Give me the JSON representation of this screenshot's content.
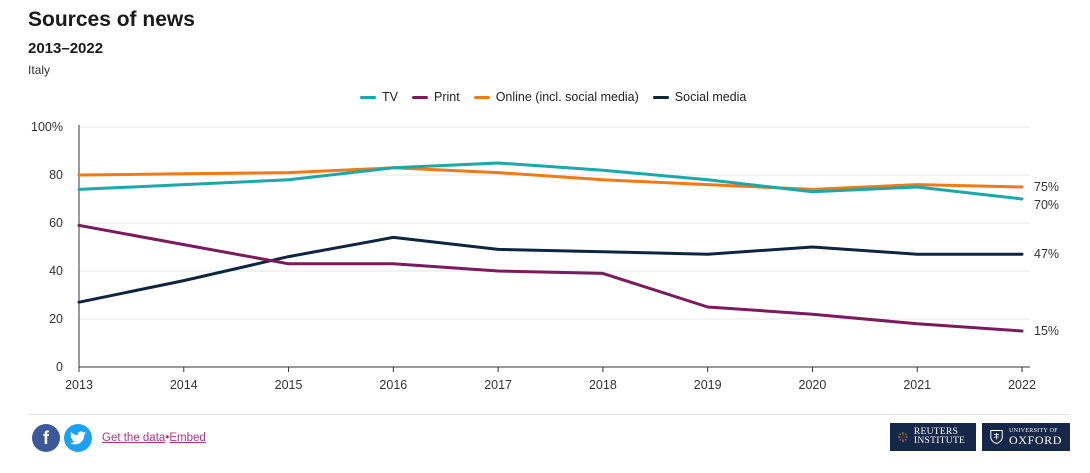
{
  "header": {
    "title": "Sources of news",
    "subtitle": "2013–2022",
    "region": "Italy"
  },
  "chart_data": {
    "type": "line",
    "x": [
      2013,
      2014,
      2015,
      2016,
      2017,
      2018,
      2019,
      2020,
      2021,
      2022
    ],
    "ylim": [
      0,
      100
    ],
    "yticks": [
      0,
      20,
      40,
      60,
      80,
      100
    ],
    "ytick_labels": [
      "0",
      "20",
      "40",
      "60",
      "80",
      "100%"
    ],
    "grid": true,
    "legend_position": "top-center",
    "series": [
      {
        "name": "TV",
        "color": "#1ba8a8",
        "values": [
          74,
          76,
          78,
          83,
          85,
          82,
          78,
          73,
          75,
          70
        ],
        "end_label": "70%"
      },
      {
        "name": "Print",
        "color": "#7b1a5c",
        "values": [
          59,
          51,
          43,
          43,
          40,
          39,
          25,
          22,
          18,
          15
        ],
        "end_label": "15%"
      },
      {
        "name": "Online (incl. social media)",
        "color": "#f07a16",
        "values": [
          80,
          80.5,
          81,
          83,
          81,
          78,
          76,
          74,
          76,
          75
        ],
        "end_label": "75%"
      },
      {
        "name": "Social media",
        "color": "#0e2540",
        "values": [
          27,
          36,
          46,
          54,
          49,
          48,
          47,
          50,
          47,
          47
        ],
        "end_label": "47%"
      }
    ]
  },
  "footer": {
    "facebook_glyph": "f",
    "twitter_glyph": "t",
    "get_data_label": "Get the data",
    "separator": "•",
    "embed_label": "Embed",
    "reuters_logo_text": "REUTERS INSTITUTE",
    "oxford_small_text": "UNIVERSITY OF",
    "oxford_big_text": "OXFORD"
  }
}
